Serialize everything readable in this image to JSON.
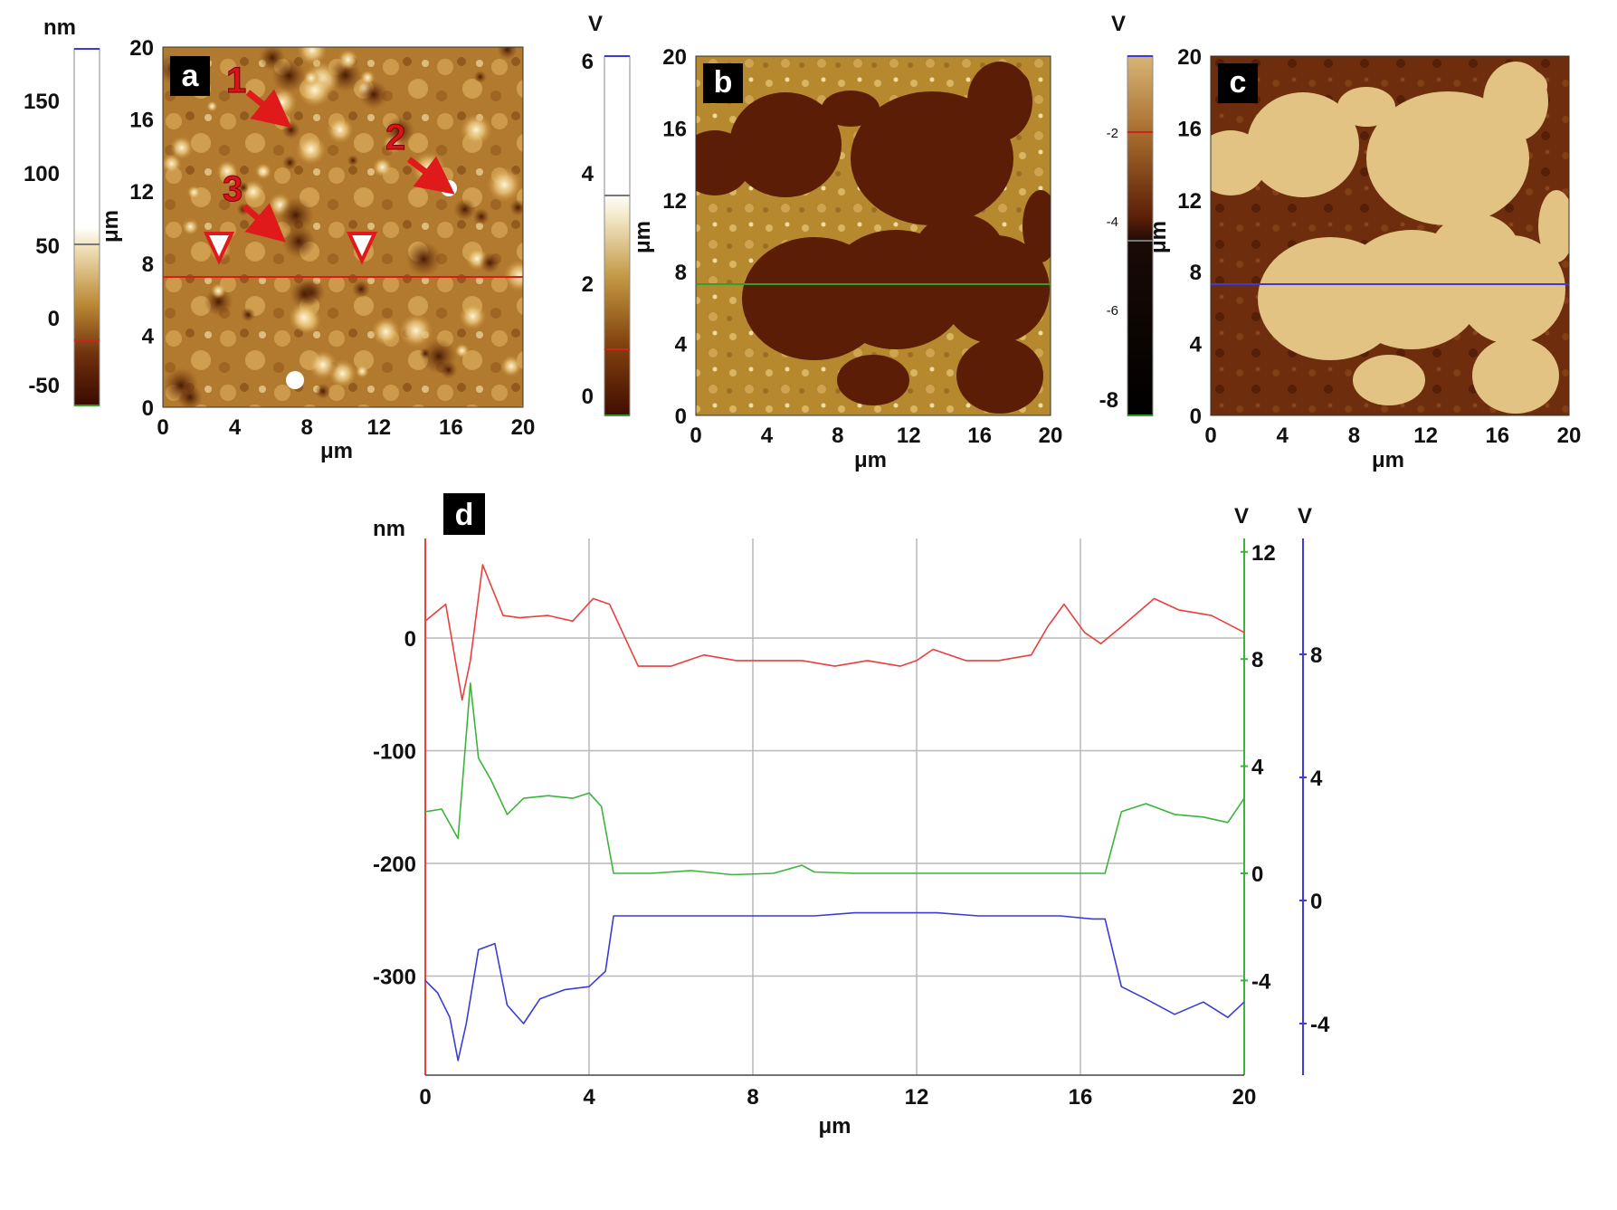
{
  "panels": [
    {
      "label": "a",
      "colorbar": {
        "unit": "nm",
        "ticks": [
          "150",
          "100",
          "50",
          "0",
          "-50"
        ]
      },
      "axis": {
        "y_label": "μm",
        "x_label": "μm",
        "y_ticks": [
          "20",
          "16",
          "12",
          "8",
          "4",
          "0"
        ],
        "x_ticks": [
          "0",
          "4",
          "8",
          "12",
          "16",
          "20"
        ]
      },
      "annotations": [
        "1",
        "2",
        "3"
      ]
    },
    {
      "label": "b",
      "colorbar": {
        "unit": "V",
        "ticks": [
          "6",
          "4",
          "2",
          "0"
        ]
      },
      "axis": {
        "y_label": "μm",
        "x_label": "μm",
        "y_ticks": [
          "20",
          "16",
          "12",
          "8",
          "4",
          "0"
        ],
        "x_ticks": [
          "0",
          "4",
          "8",
          "12",
          "16",
          "20"
        ]
      }
    },
    {
      "label": "c",
      "colorbar": {
        "unit": "V",
        "ticks": [
          "-2",
          "-4",
          "-6",
          "-8"
        ]
      },
      "axis": {
        "y_label": "μm",
        "x_label": "μm",
        "y_ticks": [
          "20",
          "16",
          "12",
          "8",
          "4",
          "0"
        ],
        "x_ticks": [
          "0",
          "4",
          "8",
          "12",
          "16",
          "20"
        ]
      }
    }
  ],
  "chart_data": {
    "label": "d",
    "type": "line",
    "xlabel": "μm",
    "xlim": [
      0,
      20
    ],
    "x_ticks": [
      "0",
      "4",
      "8",
      "12",
      "16",
      "20"
    ],
    "axes": [
      {
        "unit": "nm",
        "color": "#e8403e",
        "ticks": [
          "0",
          "-100",
          "-200",
          "-300"
        ]
      },
      {
        "unit": "V",
        "color": "#3cb43c",
        "ticks": [
          "12",
          "8",
          "4",
          "0",
          "-4"
        ]
      },
      {
        "unit": "V",
        "color": "#3b3bd6",
        "ticks": [
          "8",
          "4",
          "0",
          "-4"
        ]
      }
    ],
    "series": [
      {
        "axis": 0,
        "color": "#e8403e",
        "x": [
          0,
          0.5,
          0.9,
          1.1,
          1.4,
          1.9,
          2.3,
          3.0,
          3.6,
          4.1,
          4.5,
          5.2,
          6.0,
          6.8,
          7.6,
          8.4,
          9.2,
          10.0,
          10.8,
          11.6,
          12.0,
          12.4,
          13.2,
          14.0,
          14.8,
          15.2,
          15.6,
          16.1,
          16.5,
          17.0,
          17.8,
          18.4,
          19.2,
          20.0
        ],
        "y": [
          15,
          30,
          -55,
          -20,
          65,
          20,
          18,
          20,
          15,
          35,
          30,
          -25,
          -25,
          -15,
          -20,
          -20,
          -20,
          -25,
          -20,
          -25,
          -20,
          -10,
          -20,
          -20,
          -15,
          10,
          30,
          5,
          -5,
          10,
          35,
          25,
          20,
          5
        ]
      },
      {
        "axis": 1,
        "color": "#3cb43c",
        "x": [
          0,
          0.4,
          0.8,
          1.1,
          1.3,
          1.6,
          2.0,
          2.4,
          3.0,
          3.6,
          4.0,
          4.3,
          4.6,
          5.5,
          6.5,
          7.5,
          8.5,
          9.2,
          9.5,
          10.5,
          11.5,
          12.5,
          13.5,
          14.5,
          15.5,
          16.4,
          16.6,
          17.0,
          17.6,
          18.3,
          19.0,
          19.6,
          20.0
        ],
        "y": [
          2.3,
          2.4,
          1.3,
          7.1,
          4.3,
          3.5,
          2.2,
          2.8,
          2.9,
          2.8,
          3.0,
          2.5,
          0.0,
          0.0,
          0.1,
          -0.05,
          0.0,
          0.3,
          0.05,
          0.0,
          0.0,
          0.0,
          0.0,
          0.0,
          0.0,
          0.0,
          0.0,
          2.3,
          2.6,
          2.2,
          2.1,
          1.9,
          2.8
        ]
      },
      {
        "axis": 2,
        "color": "#3b3bd6",
        "x": [
          0,
          0.3,
          0.6,
          0.8,
          1.0,
          1.3,
          1.7,
          2.0,
          2.4,
          2.8,
          3.4,
          4.0,
          4.4,
          4.6,
          5.5,
          6.5,
          7.5,
          8.5,
          9.5,
          10.5,
          11.5,
          12.5,
          13.5,
          14.5,
          15.5,
          16.3,
          16.6,
          17.0,
          17.6,
          18.3,
          19.0,
          19.6,
          20.0
        ],
        "y": [
          -2.6,
          -3.0,
          -3.8,
          -5.2,
          -4.0,
          -1.6,
          -1.4,
          -3.4,
          -4.0,
          -3.2,
          -2.9,
          -2.8,
          -2.3,
          -0.5,
          -0.5,
          -0.5,
          -0.5,
          -0.5,
          -0.5,
          -0.4,
          -0.4,
          -0.4,
          -0.5,
          -0.5,
          -0.5,
          -0.6,
          -0.6,
          -2.8,
          -3.2,
          -3.7,
          -3.3,
          -3.8,
          -3.3
        ]
      }
    ]
  }
}
